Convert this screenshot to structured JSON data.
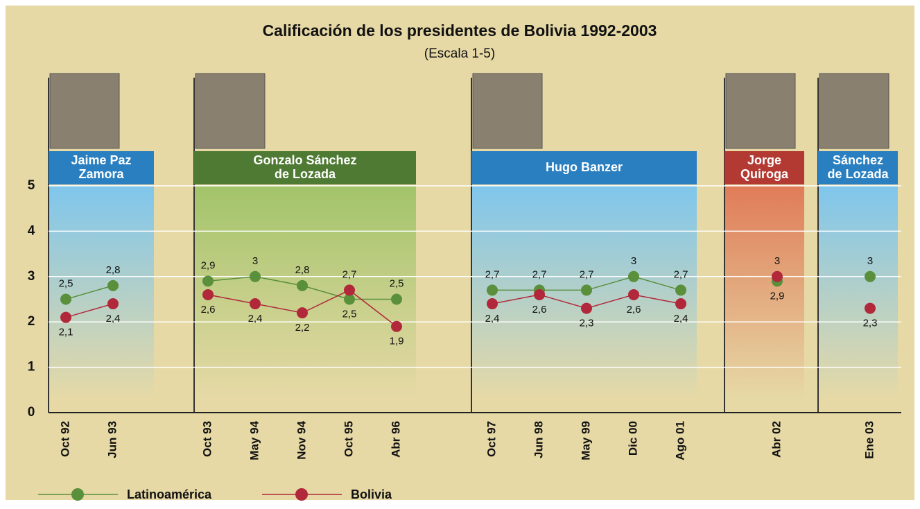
{
  "chart_data": {
    "type": "line",
    "title": "Calificación de los presidentes de Bolivia 1992-2003",
    "subtitle": "(Escala 1-5)",
    "ylim": [
      0,
      5
    ],
    "yticks": [
      0,
      1,
      2,
      3,
      4,
      5
    ],
    "grid": true,
    "groups": [
      {
        "label": [
          "Jaime Paz",
          "Zamora"
        ],
        "color": "#2a7fc0",
        "band": "blue",
        "categories": [
          "Oct 92",
          "Jun 93"
        ]
      },
      {
        "label": [
          "Gonzalo Sánchez",
          "de Lozada"
        ],
        "color": "#4f7a33",
        "band": "green",
        "categories": [
          "Oct 93",
          "May 94",
          "Nov 94",
          "Oct 95",
          "Abr 96"
        ]
      },
      {
        "label": [
          "Hugo Banzer"
        ],
        "color": "#2a7fc0",
        "band": "blue",
        "categories": [
          "Oct 97",
          "Jun 98",
          "May 99",
          "Dic 00",
          "Ago 01"
        ]
      },
      {
        "label": [
          "Jorge",
          "Quiroga"
        ],
        "color": "#b33a33",
        "band": "orange",
        "categories": [
          "Abr 02"
        ]
      },
      {
        "label": [
          "Sánchez",
          "de Lozada"
        ],
        "color": "#2a7fc0",
        "band": "blue",
        "categories": [
          "Ene 03"
        ]
      }
    ],
    "series": [
      {
        "name": "Latinoamérica",
        "color": "#5a8f3c",
        "values": [
          [
            2.5,
            2.8
          ],
          [
            2.9,
            3,
            2.8,
            2.5,
            2.5
          ],
          [
            2.7,
            2.7,
            2.7,
            3,
            2.7
          ],
          [
            2.9
          ],
          [
            3
          ]
        ],
        "value_labels": [
          [
            "2,5",
            "2,8"
          ],
          [
            "2,9",
            "3",
            "2,8",
            "2,5",
            "2,5"
          ],
          [
            "2,7",
            "2,7",
            "2,7",
            "3",
            "2,7"
          ],
          [
            "2,9"
          ],
          [
            "3"
          ]
        ]
      },
      {
        "name": "Bolivia",
        "color": "#b0283a",
        "values": [
          [
            2.1,
            2.4
          ],
          [
            2.6,
            2.4,
            2.2,
            2.7,
            1.9
          ],
          [
            2.4,
            2.6,
            2.3,
            2.6,
            2.4
          ],
          [
            3
          ],
          [
            2.3
          ]
        ],
        "value_labels": [
          [
            "2,1",
            "2,4"
          ],
          [
            "2,6",
            "2,4",
            "2,2",
            "2,7",
            "1,9"
          ],
          [
            "2,4",
            "2,6",
            "2,3",
            "2,6",
            "2,4"
          ],
          [
            "3"
          ],
          [
            "2,3"
          ]
        ]
      }
    ]
  }
}
